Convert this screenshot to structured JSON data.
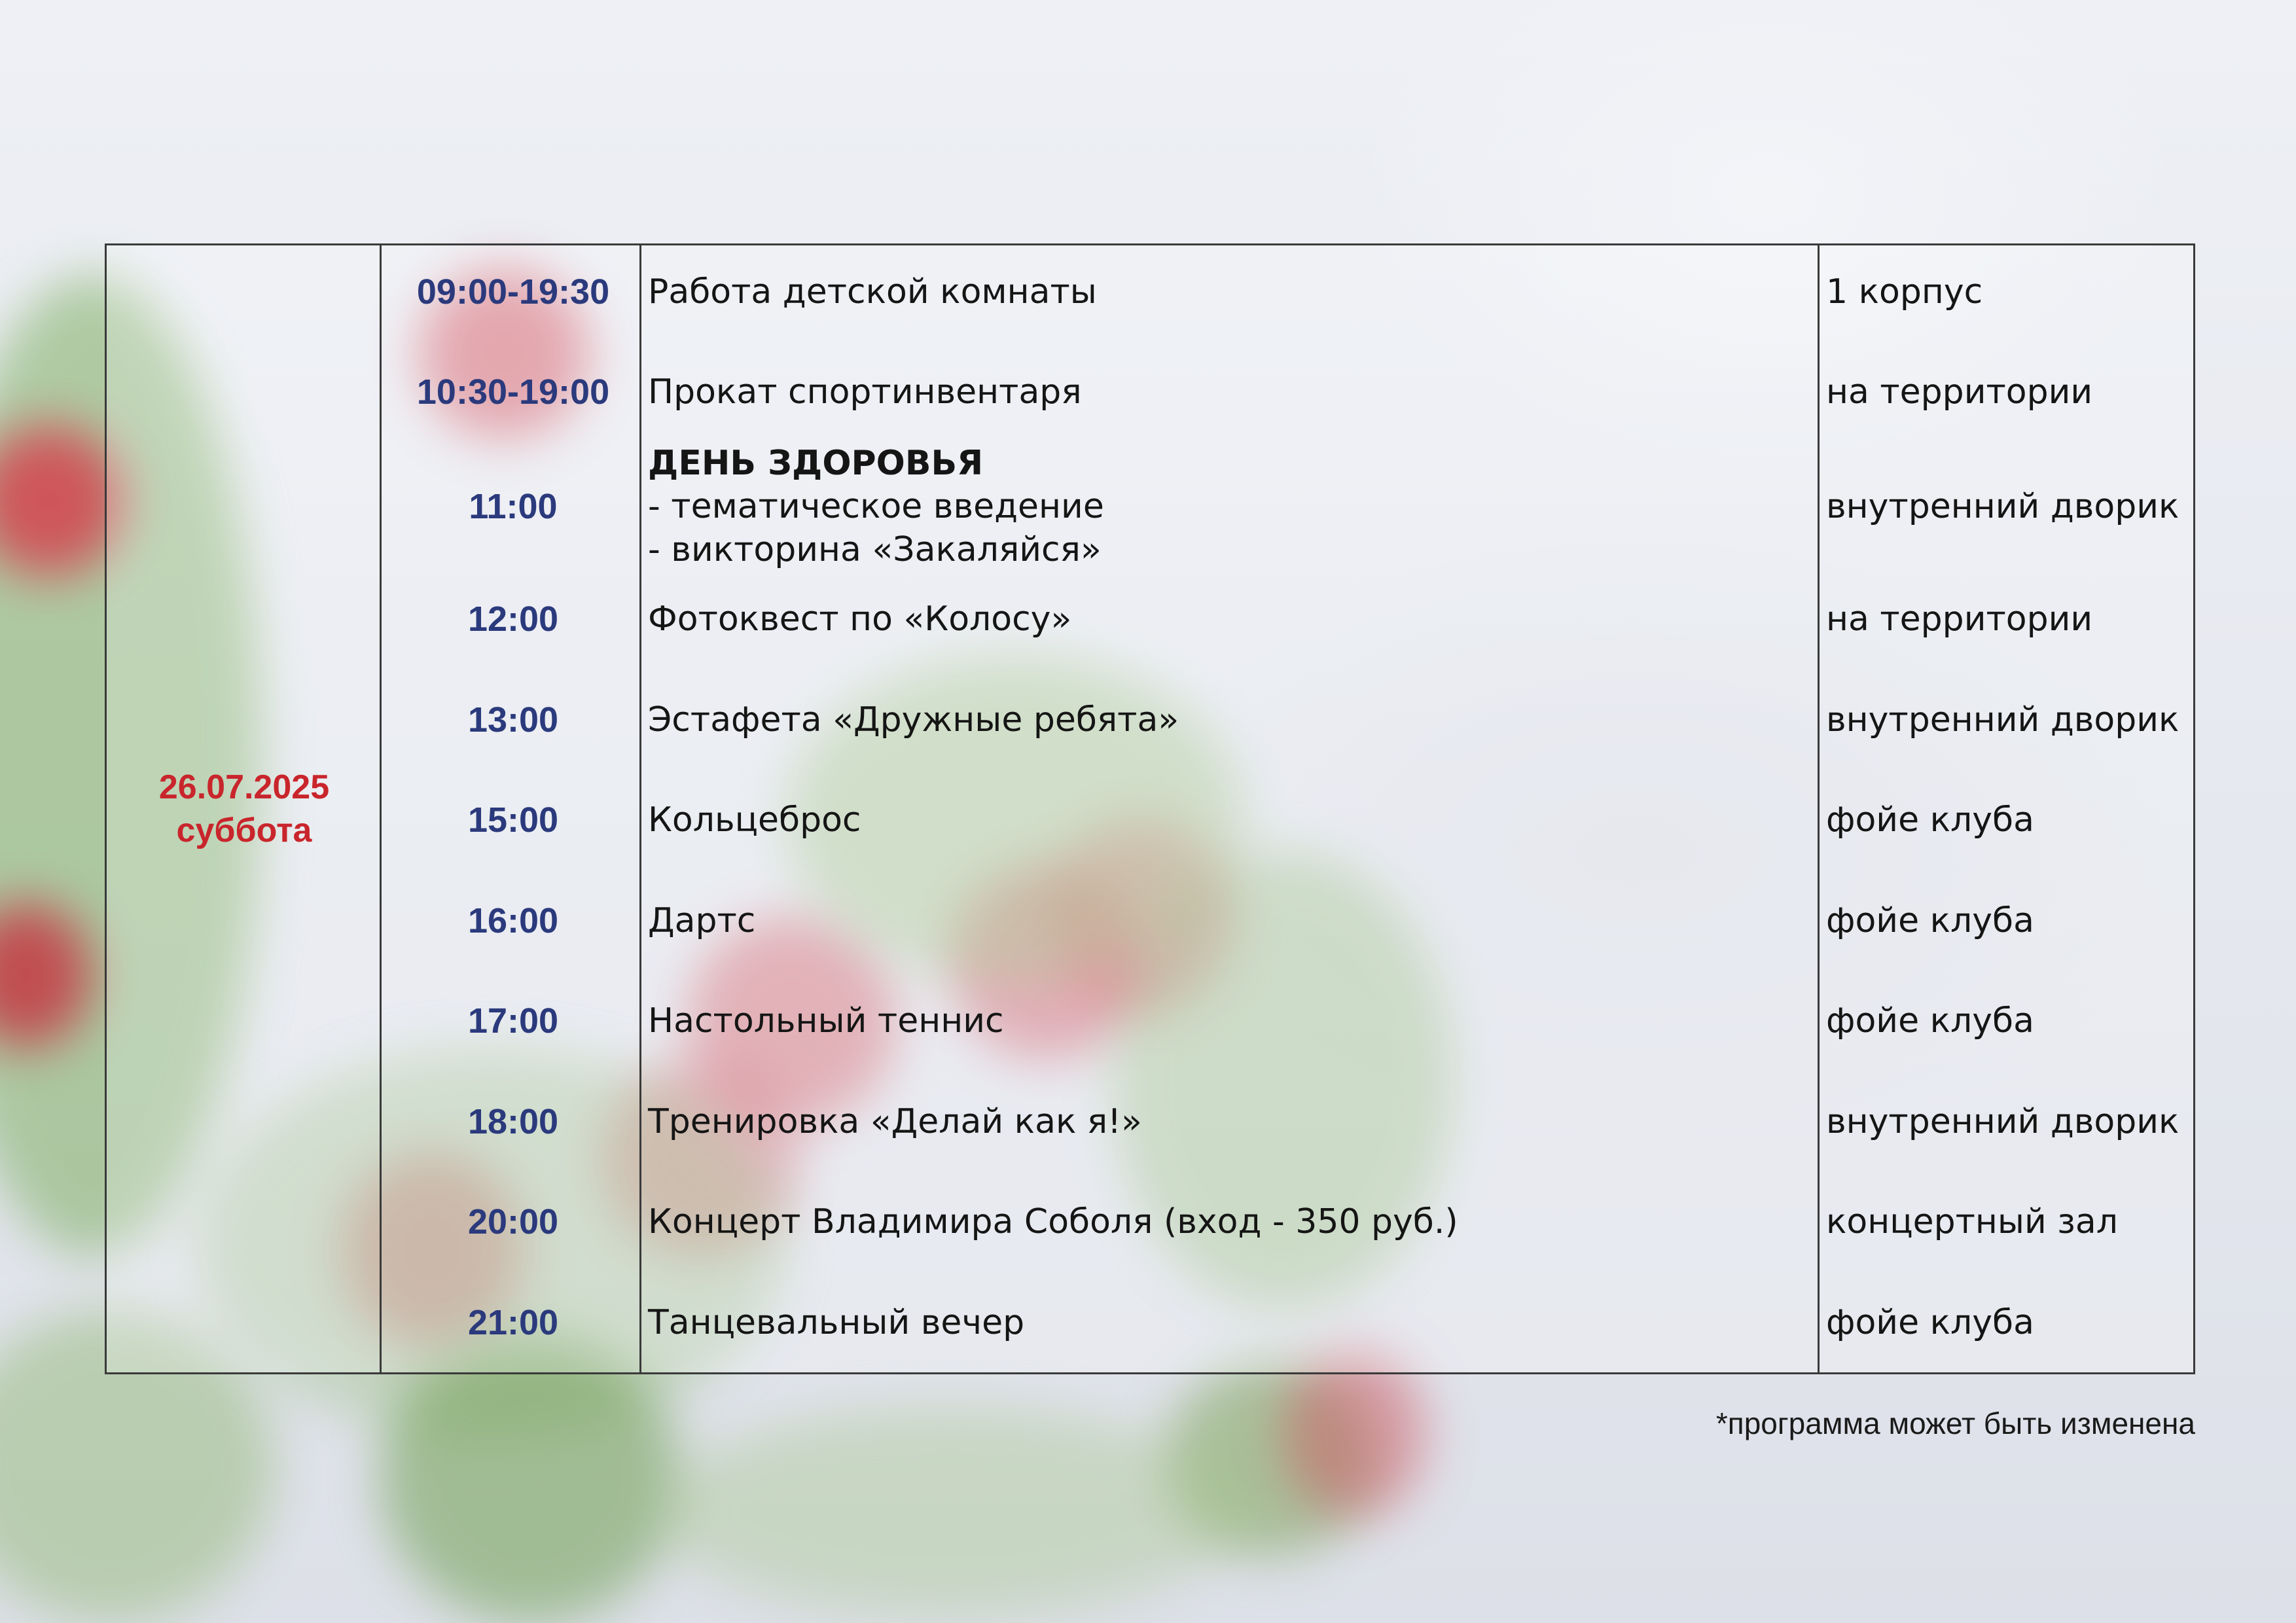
{
  "date_cell": {
    "date": "26.07.2025",
    "weekday": "суббота"
  },
  "schedule": [
    {
      "time": "09:00-19:30",
      "event": "Работа детской комнаты",
      "place": "1 корпус"
    },
    {
      "time": "10:30-19:00",
      "event": "Прокат спортинвентаря",
      "place": "на территории"
    },
    {
      "time": "11:00",
      "event_title": "ДЕНЬ ЗДОРОВЬЯ",
      "event_line1": "- тематическое введение",
      "event_line2": "- викторина «Закаляйся»",
      "place": "внутренний дворик"
    },
    {
      "time": "12:00",
      "event": "Фотоквест по «Колосу»",
      "place": "на территории"
    },
    {
      "time": "13:00",
      "event": "Эстафета «Дружные ребята»",
      "place": "внутренний дворик"
    },
    {
      "time": "15:00",
      "event": "Кольцеброс",
      "place": "фойе клуба"
    },
    {
      "time": "16:00",
      "event": "Дартс",
      "place": "фойе клуба"
    },
    {
      "time": "17:00",
      "event": "Настольный теннис",
      "place": "фойе клуба"
    },
    {
      "time": "18:00",
      "event": "Тренировка «Делай как я!»",
      "place": "внутренний дворик"
    },
    {
      "time": "20:00",
      "event": "Концерт Владимира Соболя (вход - 350 руб.)",
      "place": "концертный зал"
    },
    {
      "time": "21:00",
      "event": "Танцевальный вечер",
      "place": "фойе клуба"
    }
  ],
  "footnote": "*программа может быть изменена",
  "colors": {
    "date": "#c9252c",
    "time": "#2b3a7c",
    "text": "#151515",
    "border": "#3a3a3a"
  }
}
